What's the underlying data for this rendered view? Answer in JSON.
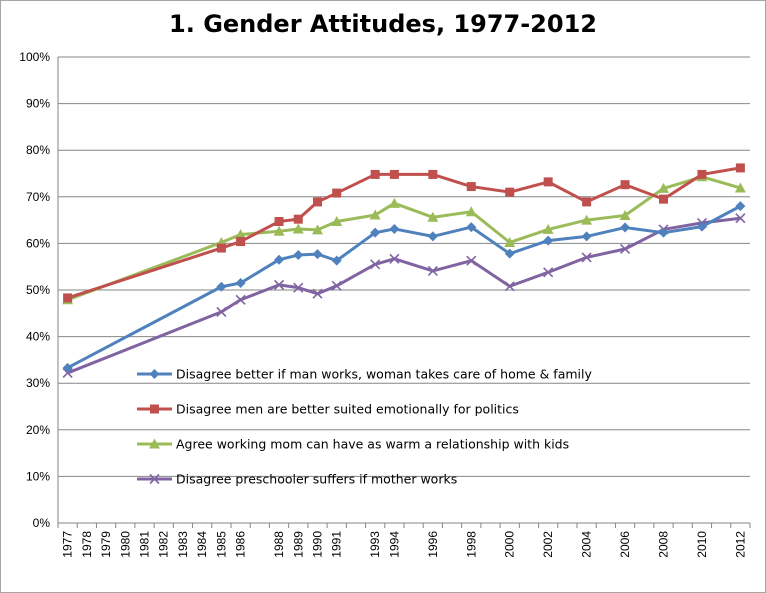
{
  "chart_data": {
    "type": "line",
    "title": "1. Gender Attitudes, 1977-2012",
    "xlabel": "",
    "ylabel": "",
    "ylim": [
      0,
      100
    ],
    "y_ticks": [
      "0%",
      "10%",
      "20%",
      "30%",
      "40%",
      "50%",
      "60%",
      "70%",
      "80%",
      "90%",
      "100%"
    ],
    "categories": [
      "1977",
      "1978",
      "1979",
      "1980",
      "1981",
      "1982",
      "1983",
      "1984",
      "1985",
      "1986",
      "1987",
      "1988",
      "1989",
      "1990",
      "1991",
      "1992",
      "1993",
      "1994",
      "1995",
      "1996",
      "1997",
      "1998",
      "1999",
      "2000",
      "2001",
      "2002",
      "2003",
      "2004",
      "2005",
      "2006",
      "2007",
      "2008",
      "2009",
      "2010",
      "2011",
      "2012"
    ],
    "x_tick_labels": [
      "1977",
      "1978",
      "1979",
      "1980",
      "1981",
      "1982",
      "1983",
      "1984",
      "1985",
      "1986",
      "1988",
      "1989",
      "1990",
      "1991",
      "1993",
      "1994",
      "1996",
      "1998",
      "2000",
      "2002",
      "2004",
      "2006",
      "2008",
      "2010",
      "2012"
    ],
    "grid": true,
    "legend_position": "inside-bottom-center",
    "series": [
      {
        "name": "Disagree better if man works, woman takes care of home & family",
        "color": "#4f81bd",
        "marker": "diamond",
        "x": [
          1977,
          1985,
          1986,
          1988,
          1989,
          1990,
          1991,
          1993,
          1994,
          1996,
          1998,
          2000,
          2002,
          2004,
          2006,
          2008,
          2010,
          2012
        ],
        "values": [
          33.3,
          50.7,
          51.5,
          56.5,
          57.5,
          57.7,
          56.3,
          62.3,
          63.1,
          61.5,
          63.5,
          57.8,
          60.6,
          61.5,
          63.4,
          62.3,
          63.6,
          68.0
        ]
      },
      {
        "name": "Disagree men are better suited emotionally for politics",
        "color": "#c0504d",
        "marker": "square",
        "x": [
          1977,
          1985,
          1986,
          1988,
          1989,
          1990,
          1991,
          1993,
          1994,
          1996,
          1998,
          2000,
          2002,
          2004,
          2006,
          2008,
          2010,
          2012
        ],
        "values": [
          48.3,
          59.0,
          60.4,
          64.7,
          65.2,
          68.9,
          70.8,
          74.8,
          74.8,
          74.8,
          72.2,
          71.0,
          73.2,
          68.9,
          72.6,
          69.5,
          74.8,
          76.2
        ]
      },
      {
        "name": "Agree working mom can have as warm a relationship with kids",
        "color": "#9bbb59",
        "marker": "triangle",
        "x": [
          1977,
          1985,
          1986,
          1988,
          1989,
          1990,
          1991,
          1993,
          1994,
          1996,
          1998,
          2000,
          2002,
          2004,
          2006,
          2008,
          2010,
          2012
        ],
        "values": [
          47.9,
          60.2,
          61.9,
          62.6,
          63.1,
          62.9,
          64.7,
          66.1,
          68.6,
          65.6,
          66.8,
          60.2,
          63.0,
          65.0,
          66.0,
          71.8,
          74.3,
          71.9
        ]
      },
      {
        "name": "Disagree preschooler suffers if mother works",
        "color": "#8064a2",
        "marker": "x",
        "x": [
          1977,
          1985,
          1986,
          1988,
          1989,
          1990,
          1991,
          1993,
          1994,
          1996,
          1998,
          2000,
          2002,
          2004,
          2006,
          2008,
          2010,
          2012
        ],
        "values": [
          32.2,
          45.3,
          47.9,
          51.1,
          50.5,
          49.2,
          50.9,
          55.5,
          56.7,
          54.1,
          56.3,
          50.8,
          53.8,
          57.0,
          58.8,
          63.0,
          64.4,
          65.4
        ]
      }
    ]
  }
}
